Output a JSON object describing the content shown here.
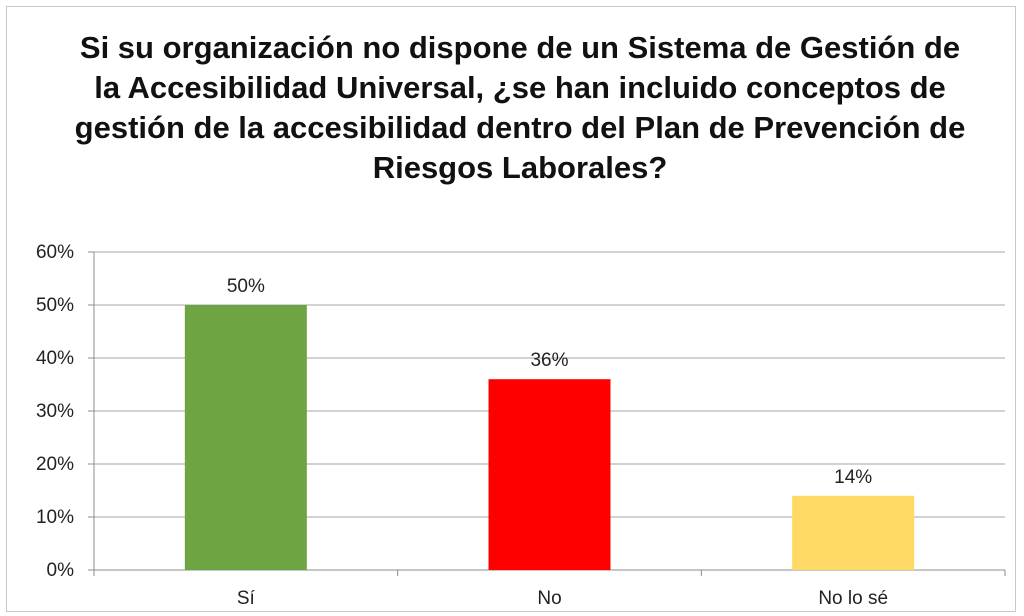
{
  "chart_data": {
    "type": "bar",
    "title": "Si su organización no dispone de un Sistema de Gestión de la Accesibilidad Universal, ¿se han incluido conceptos de gestión de la accesibilidad dentro del Plan de Prevención de Riesgos Laborales?",
    "categories": [
      "Sí",
      "No",
      "No lo sé"
    ],
    "values": [
      50,
      36,
      14
    ],
    "data_labels": [
      "50%",
      "36%",
      "14%"
    ],
    "colors": [
      "#6fa443",
      "#ff0000",
      "#ffd966"
    ],
    "ylim": [
      0,
      60
    ],
    "yticks": [
      "0%",
      "10%",
      "20%",
      "30%",
      "40%",
      "50%",
      "60%"
    ],
    "ytick_values": [
      0,
      10,
      20,
      30,
      40,
      50,
      60
    ],
    "xlabel": "",
    "ylabel": "",
    "grid": true,
    "legend": false
  }
}
